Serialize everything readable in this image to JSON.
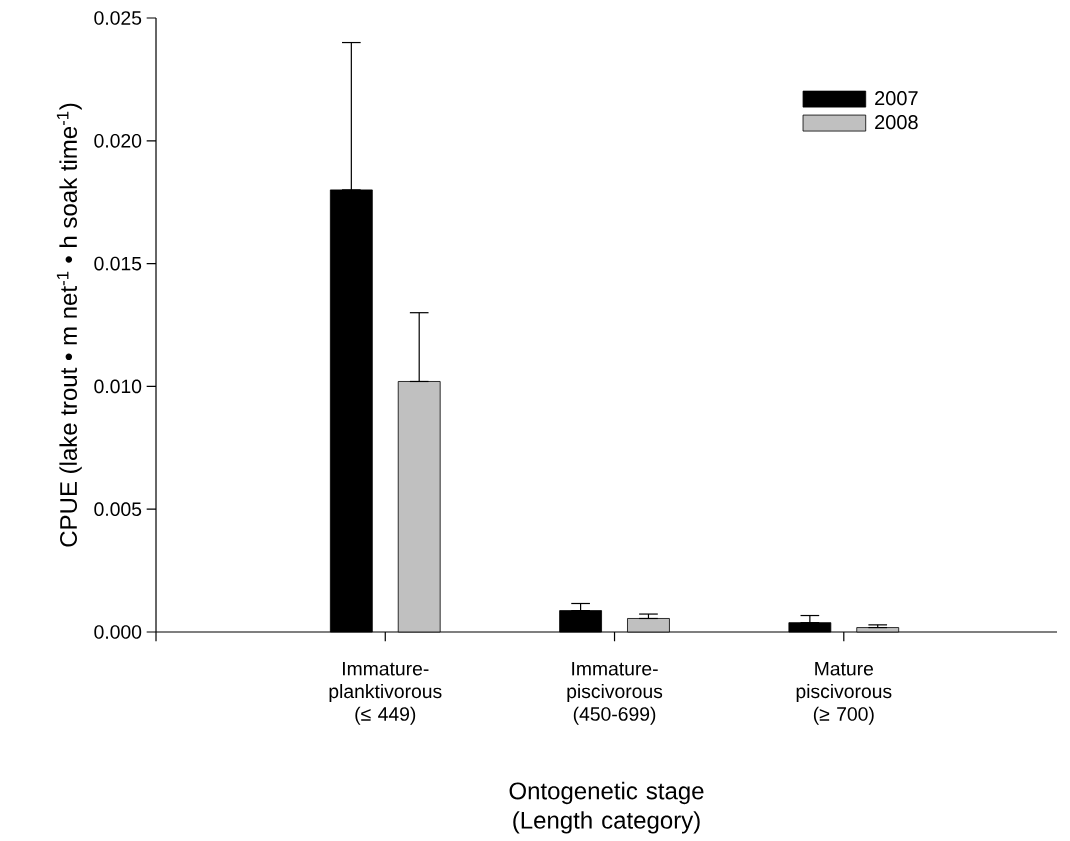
{
  "chart_data": {
    "type": "bar",
    "xlabel": "Ontogenetic stage (Length category)",
    "ylabel": "CPUE (lake trout • m net$^{-1}$ • h soak time$^{-1}$)",
    "categories": [
      "Immature-planktivorous (≤ 449)",
      "Immature-piscivorous (450-699)",
      "Mature piscivorous (≥ 700)"
    ],
    "series": [
      {
        "name": "2007",
        "color": "#000000",
        "values": [
          0.018,
          0.00087,
          0.00038
        ],
        "errors": [
          [
            0.018,
            0.024
          ],
          [
            0.00087,
            0.00116
          ],
          [
            0.00038,
            0.00067
          ]
        ]
      },
      {
        "name": "2008",
        "color": "#c0c0c0",
        "values": [
          0.0102,
          0.00055,
          0.00018
        ],
        "errors": [
          [
            0.0102,
            0.013
          ],
          [
            0.00055,
            0.00073
          ],
          [
            0.00018,
            0.00029
          ]
        ]
      }
    ],
    "ylim": [
      0,
      0.025
    ],
    "yticks": [
      {
        "value": 0,
        "label": "0.000"
      },
      {
        "value": 0.005,
        "label": "0.005"
      },
      {
        "value": 0.01,
        "label": "0.010"
      },
      {
        "value": 0.015,
        "label": "0.015"
      },
      {
        "value": 0.02,
        "label": "0.020"
      },
      {
        "value": 0.025,
        "label": "0.025"
      }
    ],
    "legend": "top right",
    "grid": false
  }
}
